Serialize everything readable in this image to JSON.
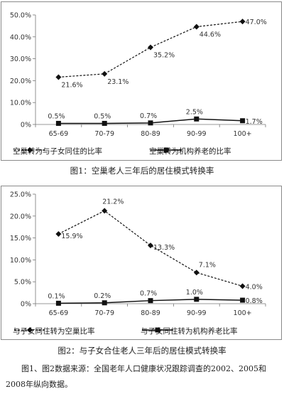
{
  "chart_data": [
    {
      "type": "line",
      "categories": [
        "65-69",
        "70-79",
        "80-89",
        "90-99",
        "100+"
      ],
      "series": [
        {
          "name": "空巢转为与子女同住的比率",
          "values": [
            21.6,
            23.1,
            35.2,
            44.6,
            47.0
          ],
          "labels": [
            "21.6%",
            "23.1%",
            "35.2%",
            "44.6%",
            "47.0%"
          ],
          "style": "dashed",
          "marker": "diamond"
        },
        {
          "name": "空巢转为机构养老的比率",
          "values": [
            0.5,
            0.5,
            0.7,
            2.5,
            1.7
          ],
          "labels": [
            "0.5%",
            "0.5%",
            "0.7%",
            "2.5%",
            "1.7%"
          ],
          "style": "solid",
          "marker": "square"
        }
      ],
      "yticks": [
        "0%",
        "10.0%",
        "20.0%",
        "30.0%",
        "40.0%",
        "50.0%"
      ],
      "ylim": [
        0,
        50
      ],
      "legend_position": "bottom",
      "caption": "图1：空巢老人三年后的居住模式转换率"
    },
    {
      "type": "line",
      "categories": [
        "65-69",
        "70-79",
        "80-89",
        "90-99",
        "100+"
      ],
      "series": [
        {
          "name": "与子女同住转为空巢比率",
          "values": [
            15.9,
            21.2,
            13.3,
            7.1,
            4.0
          ],
          "labels": [
            "15.9%",
            "21.2%",
            "13.3%",
            "7.1%",
            "4.0%"
          ],
          "style": "dashed",
          "marker": "diamond"
        },
        {
          "name": "与子女同住转为机构养老比率",
          "values": [
            0.1,
            0.2,
            0.7,
            1.0,
            0.8
          ],
          "labels": [
            "0.1%",
            "0.2%",
            "0.7%",
            "1.0%",
            "0.8%"
          ],
          "style": "solid",
          "marker": "square"
        }
      ],
      "yticks": [
        "0%",
        "5.0%",
        "10.0%",
        "15.0%",
        "20.0%",
        "25.0%"
      ],
      "ylim": [
        0,
        25
      ],
      "legend_position": "bottom",
      "caption": "图2：与子女合住老人三年后的居住模式转换率"
    }
  ],
  "source_note": "图1、图2数据来源：全国老年人口健康状况跟踪调查的2002、2005和2008年纵向数据。"
}
